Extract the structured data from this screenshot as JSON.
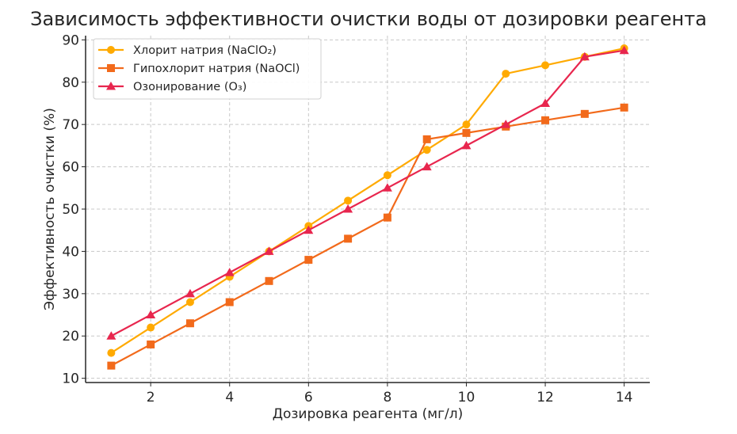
{
  "chart_data": {
    "type": "line",
    "title": "Зависимость эффективности очистки воды от дозировки реагента",
    "xlabel": "Дозировка реагента (мг/л)",
    "ylabel": "Эффективность очистки (%)",
    "x": [
      1,
      2,
      3,
      4,
      5,
      6,
      7,
      8,
      9,
      10,
      11,
      12,
      13,
      14
    ],
    "xlim": [
      0.35,
      14.65
    ],
    "ylim": [
      9,
      91
    ],
    "xticks": [
      2,
      4,
      6,
      8,
      10,
      12,
      14
    ],
    "yticks": [
      10,
      20,
      30,
      40,
      50,
      60,
      70,
      80,
      90
    ],
    "grid": true,
    "legend_position": "upper left",
    "series": [
      {
        "name": "Хлорит натрия (NaClO₂)",
        "color": "#FFAA00",
        "marker": "circle",
        "values": [
          16,
          22,
          28,
          34,
          40,
          46,
          52,
          58,
          64,
          70,
          82,
          84,
          86,
          88
        ]
      },
      {
        "name": "Гипохлорит натрия (NaOCl)",
        "color": "#F26A1B",
        "marker": "square",
        "values": [
          13,
          18,
          23,
          28,
          33,
          38,
          43,
          48,
          66.5,
          68,
          69.5,
          71,
          72.5,
          74
        ]
      },
      {
        "name": "Озонирование (O₃)",
        "color": "#E8264E",
        "marker": "triangle",
        "values": [
          20,
          25,
          30,
          35,
          40,
          45,
          50,
          55,
          60,
          65,
          70,
          75,
          86,
          87.5
        ]
      }
    ]
  }
}
